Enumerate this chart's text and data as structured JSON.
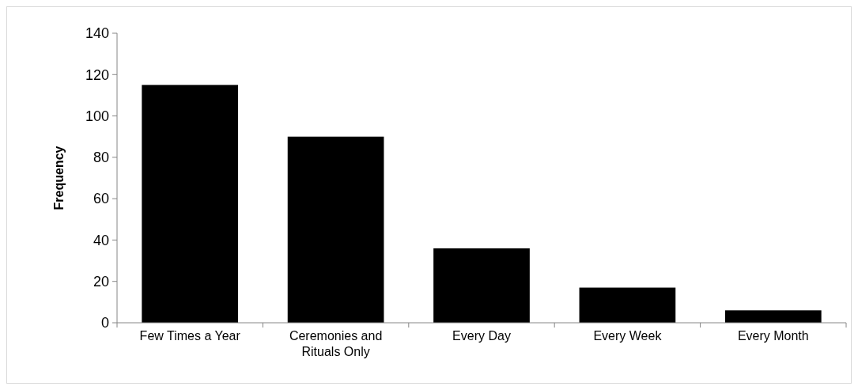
{
  "chart_data": {
    "type": "bar",
    "ylabel": "Frequency",
    "categories": [
      "Few Times a Year",
      "Ceremonies and Rituals Only",
      "Every Day",
      "Every Week",
      "Every Month"
    ],
    "values": [
      115,
      90,
      36,
      17,
      6
    ],
    "color": "#000000",
    "ylim": [
      0,
      140
    ],
    "yticks": [
      0,
      20,
      40,
      60,
      80,
      100,
      120,
      140
    ],
    "grid": false
  }
}
